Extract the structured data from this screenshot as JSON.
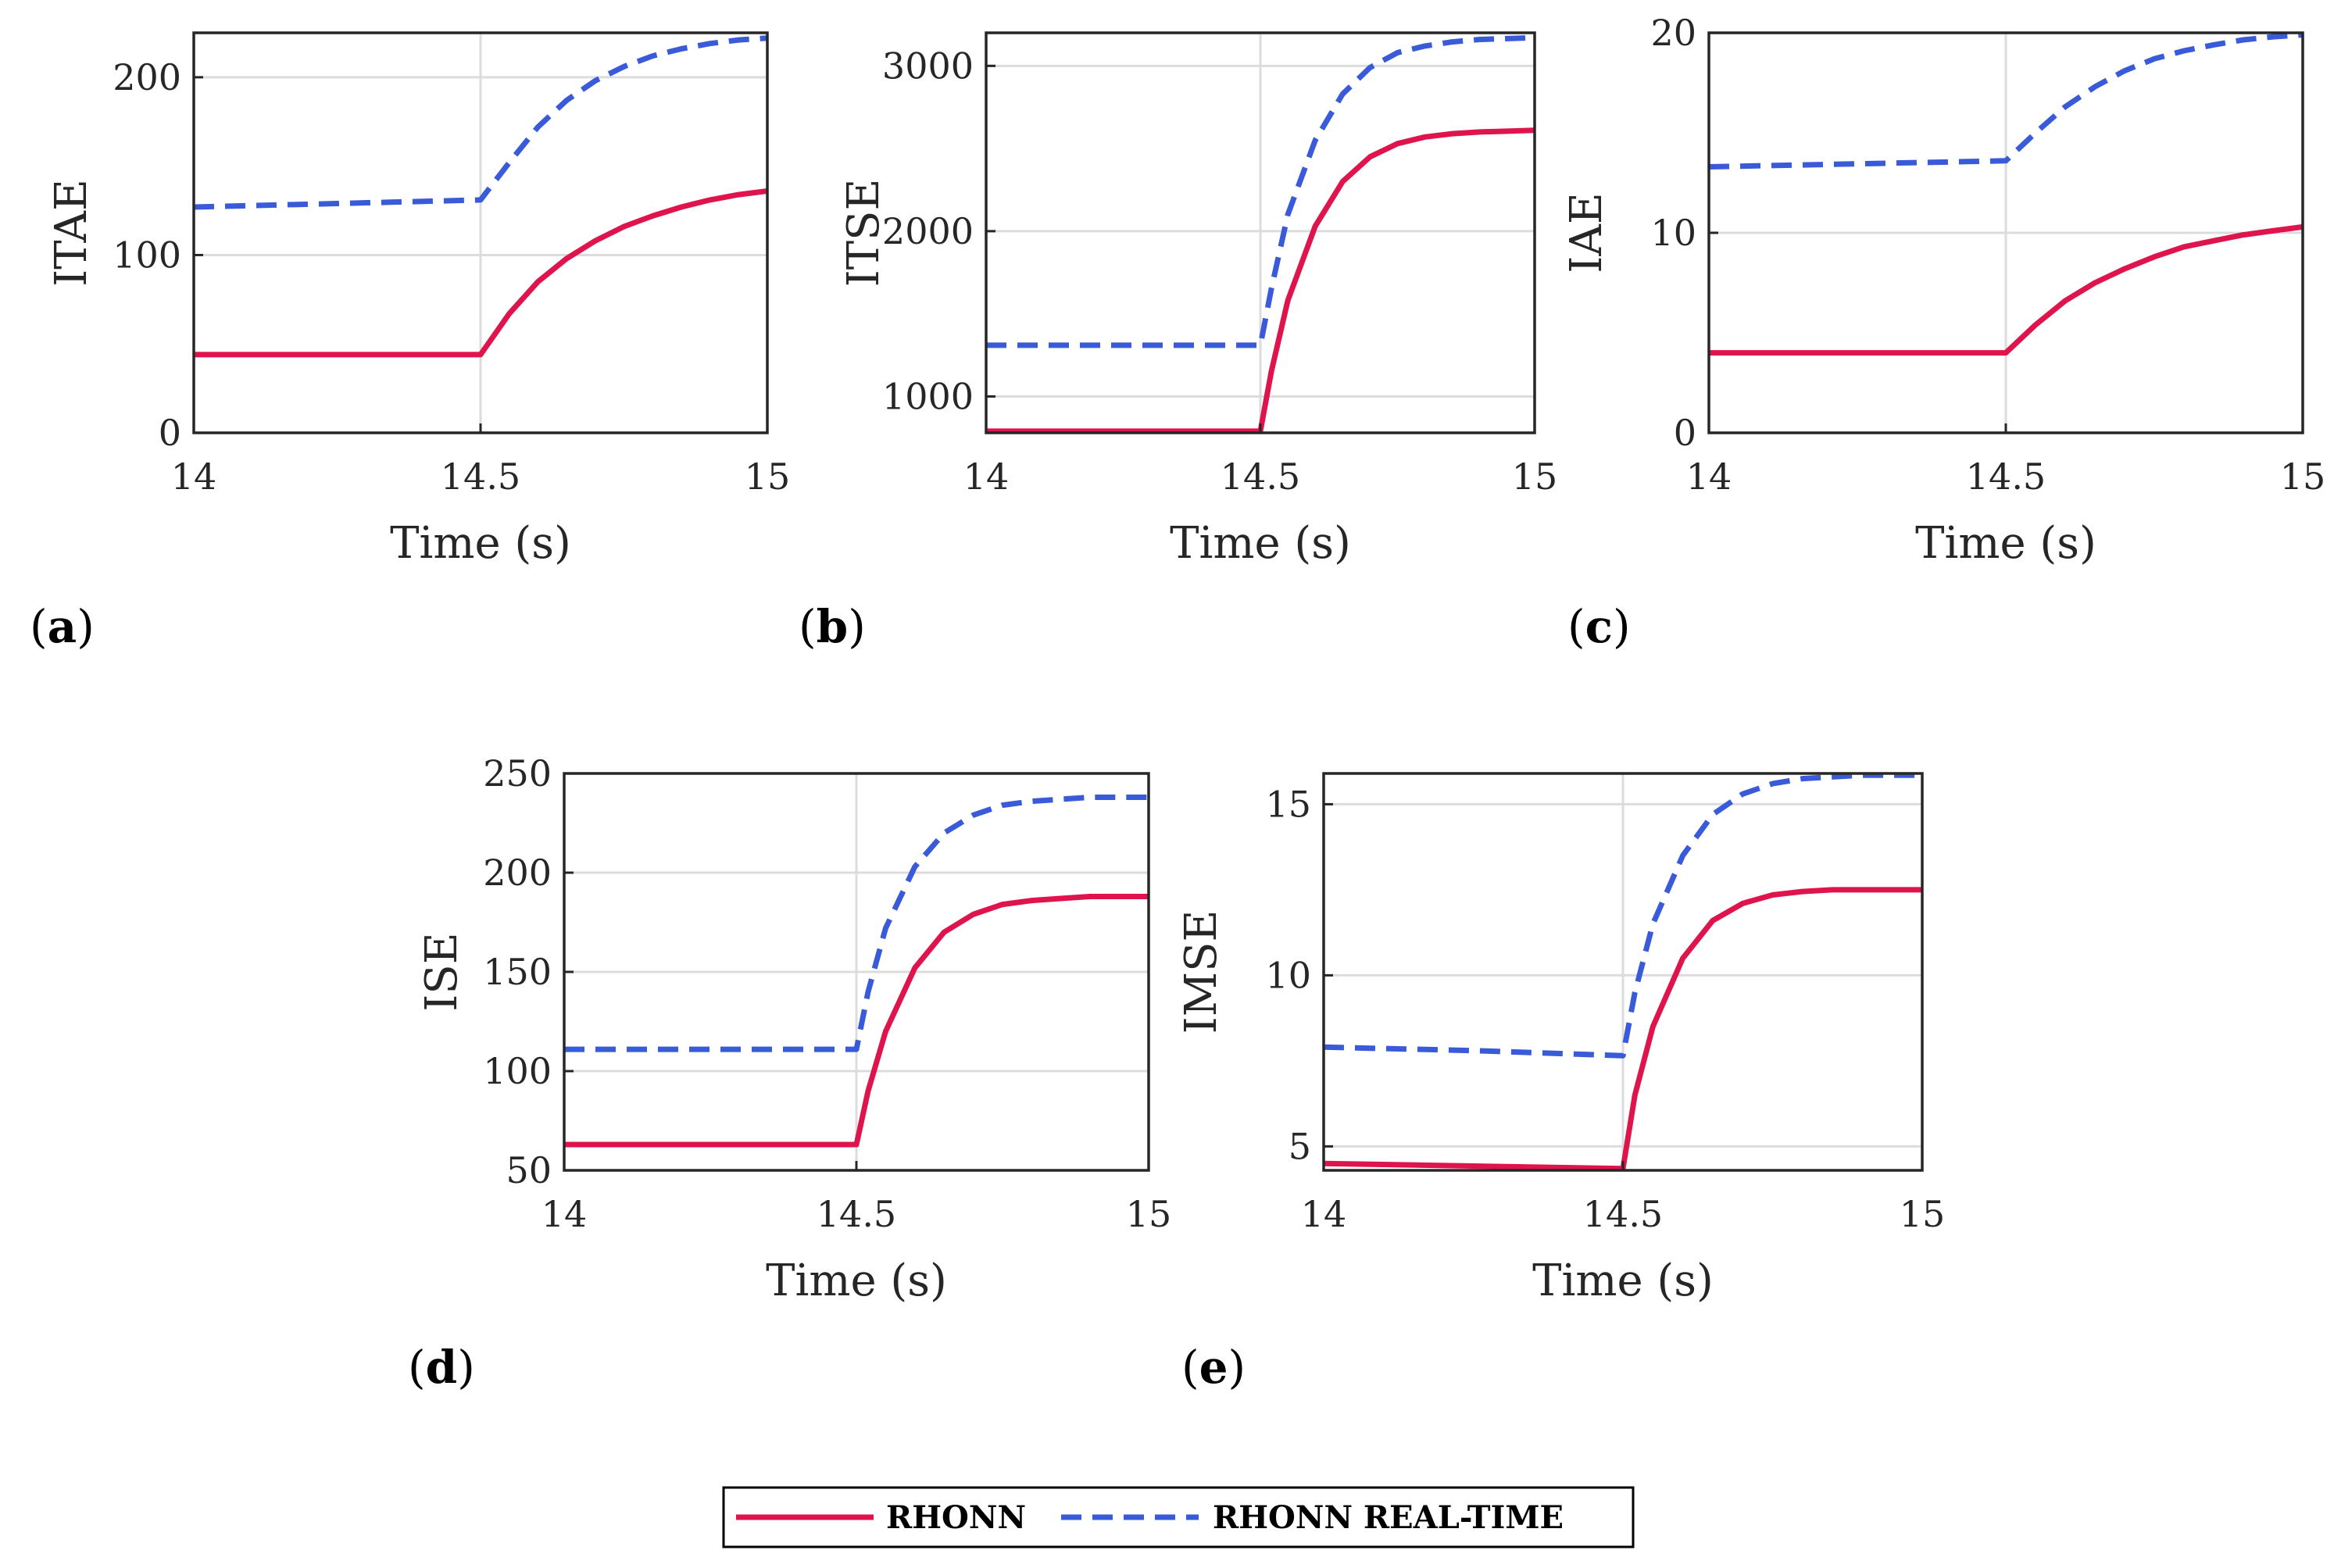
{
  "colors": {
    "rhonn": "#e0144c",
    "realtime": "#3a5bd9",
    "grid": "#dcdcdc",
    "axis": "#262626"
  },
  "legend": {
    "items": [
      {
        "label": "RHONN",
        "style": "solid",
        "color": "#e0144c"
      },
      {
        "label": "RHONN REAL-TIME",
        "style": "dashed",
        "color": "#3a5bd9"
      }
    ]
  },
  "chart_data": [
    {
      "type": "line",
      "panel": "(a)",
      "xlabel": "Time (s)",
      "ylabel": "ITAE",
      "xlim": [
        14,
        15
      ],
      "ylim": [
        0,
        225
      ],
      "xticks": [
        14,
        14.5,
        15
      ],
      "yticks": [
        0,
        100,
        200
      ],
      "grid": true,
      "series": [
        {
          "name": "RHONN",
          "x": [
            14,
            14.5,
            14.55,
            14.6,
            14.65,
            14.7,
            14.75,
            14.8,
            14.85,
            14.9,
            14.95,
            15
          ],
          "values": [
            44,
            44,
            67,
            85,
            98,
            108,
            116,
            122,
            127,
            131,
            134,
            136
          ]
        },
        {
          "name": "RHONN REAL-TIME",
          "x": [
            14,
            14.25,
            14.5,
            14.55,
            14.6,
            14.65,
            14.7,
            14.75,
            14.8,
            14.85,
            14.9,
            14.95,
            15
          ],
          "values": [
            127,
            129,
            131,
            152,
            172,
            187,
            198,
            206,
            212,
            216,
            219,
            221,
            222
          ]
        }
      ]
    },
    {
      "type": "line",
      "panel": "(b)",
      "xlabel": "Time (s)",
      "ylabel": "ITSE",
      "xlim": [
        14,
        15
      ],
      "ylim": [
        780,
        3200
      ],
      "xticks": [
        14,
        14.5,
        15
      ],
      "yticks": [
        1000,
        2000,
        3000
      ],
      "grid": true,
      "series": [
        {
          "name": "RHONN",
          "x": [
            14,
            14.5,
            14.52,
            14.55,
            14.6,
            14.65,
            14.7,
            14.75,
            14.8,
            14.85,
            14.9,
            14.95,
            15
          ],
          "values": [
            790,
            790,
            1150,
            1580,
            2030,
            2300,
            2450,
            2530,
            2570,
            2590,
            2600,
            2605,
            2610
          ]
        },
        {
          "name": "RHONN REAL-TIME",
          "x": [
            14,
            14.5,
            14.52,
            14.55,
            14.6,
            14.65,
            14.7,
            14.75,
            14.8,
            14.85,
            14.9,
            14.95,
            15
          ],
          "values": [
            1310,
            1310,
            1650,
            2100,
            2550,
            2830,
            2990,
            3080,
            3120,
            3145,
            3160,
            3165,
            3170
          ]
        }
      ]
    },
    {
      "type": "line",
      "panel": "(c)",
      "xlabel": "Time (s)",
      "ylabel": "IAE",
      "xlim": [
        14,
        15
      ],
      "ylim": [
        0,
        20
      ],
      "xticks": [
        14,
        14.5,
        15
      ],
      "yticks": [
        0,
        10,
        20
      ],
      "grid": true,
      "series": [
        {
          "name": "RHONN",
          "x": [
            14,
            14.5,
            14.55,
            14.6,
            14.65,
            14.7,
            14.75,
            14.8,
            14.85,
            14.9,
            14.95,
            15
          ],
          "values": [
            4,
            4,
            5.4,
            6.6,
            7.5,
            8.2,
            8.8,
            9.3,
            9.6,
            9.9,
            10.1,
            10.3
          ]
        },
        {
          "name": "RHONN REAL-TIME",
          "x": [
            14,
            14.25,
            14.5,
            14.55,
            14.6,
            14.65,
            14.7,
            14.75,
            14.8,
            14.85,
            14.9,
            14.95,
            15
          ],
          "values": [
            13.3,
            13.45,
            13.6,
            15.0,
            16.3,
            17.3,
            18.1,
            18.7,
            19.1,
            19.4,
            19.65,
            19.8,
            19.9
          ]
        }
      ]
    },
    {
      "type": "line",
      "panel": "(d)",
      "xlabel": "Time (s)",
      "ylabel": "ISE",
      "xlim": [
        14,
        15
      ],
      "ylim": [
        50,
        250
      ],
      "xticks": [
        14,
        14.5,
        15
      ],
      "yticks": [
        50,
        100,
        150,
        200,
        250
      ],
      "grid": true,
      "series": [
        {
          "name": "RHONN",
          "x": [
            14,
            14.5,
            14.52,
            14.55,
            14.6,
            14.65,
            14.7,
            14.75,
            14.8,
            14.85,
            14.9,
            14.95,
            15
          ],
          "values": [
            63,
            63,
            90,
            120,
            152,
            170,
            179,
            184,
            186,
            187,
            188,
            188,
            188
          ]
        },
        {
          "name": "RHONN REAL-TIME",
          "x": [
            14,
            14.5,
            14.52,
            14.55,
            14.6,
            14.65,
            14.7,
            14.75,
            14.8,
            14.85,
            14.9,
            14.95,
            15
          ],
          "values": [
            111,
            111,
            140,
            172,
            203,
            220,
            229,
            234,
            236,
            237,
            238,
            238,
            238
          ]
        }
      ]
    },
    {
      "type": "line",
      "panel": "(e)",
      "xlabel": "Time (s)",
      "ylabel": "IMSE",
      "xlim": [
        14,
        15
      ],
      "ylim": [
        4.3,
        15.9
      ],
      "xticks": [
        14,
        14.5,
        15
      ],
      "yticks": [
        5,
        10,
        15
      ],
      "grid": true,
      "series": [
        {
          "name": "RHONN",
          "x": [
            14,
            14.5,
            14.52,
            14.55,
            14.6,
            14.65,
            14.7,
            14.75,
            14.8,
            14.85,
            14.9,
            14.95,
            15
          ],
          "values": [
            4.5,
            4.35,
            6.5,
            8.5,
            10.5,
            11.6,
            12.1,
            12.35,
            12.45,
            12.5,
            12.5,
            12.5,
            12.5
          ]
        },
        {
          "name": "RHONN REAL-TIME",
          "x": [
            14,
            14.25,
            14.5,
            14.52,
            14.55,
            14.6,
            14.65,
            14.7,
            14.75,
            14.8,
            14.85,
            14.9,
            14.95,
            15
          ],
          "values": [
            7.9,
            7.8,
            7.65,
            9.5,
            11.5,
            13.5,
            14.7,
            15.3,
            15.6,
            15.75,
            15.8,
            15.85,
            15.85,
            15.85
          ]
        }
      ]
    }
  ]
}
